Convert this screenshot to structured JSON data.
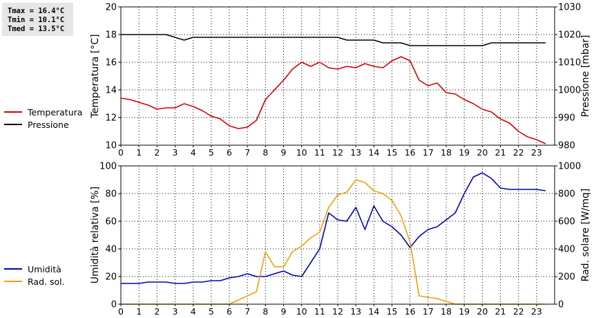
{
  "stats": {
    "tmax": "Tmax = 16.4°C",
    "tmin": "Tmin = 10.1°C",
    "tmed": "Tmed = 13.5°C"
  },
  "colors": {
    "temperature": "#d40000",
    "pressure": "#000000",
    "humidity": "#0000bb",
    "radiation": "#f0a000",
    "grid": "#000000"
  },
  "chart_data": [
    {
      "type": "line",
      "xlim": [
        0,
        24
      ],
      "xticks": [
        "0",
        "1",
        "2",
        "3",
        "4",
        "5",
        "6",
        "7",
        "8",
        "9",
        "10",
        "11",
        "12",
        "13",
        "14",
        "15",
        "16",
        "17",
        "18",
        "19",
        "20",
        "21",
        "22",
        "23"
      ],
      "ylabel": "Temperatura [°C]",
      "ylim": [
        10,
        20
      ],
      "yticks": [
        10,
        12,
        14,
        16,
        18,
        20
      ],
      "y2label": "Pressione [mbar]",
      "y2lim": [
        980,
        1030
      ],
      "y2ticks": [
        980,
        990,
        1000,
        1010,
        1020,
        1030
      ],
      "grid": true,
      "series": [
        {
          "name": "Temperatura",
          "axis": "left",
          "x": [
            0,
            0.5,
            1,
            1.5,
            2,
            2.5,
            3,
            3.5,
            4,
            4.5,
            5,
            5.5,
            6,
            6.5,
            7,
            7.5,
            8,
            8.5,
            9,
            9.5,
            10,
            10.5,
            11,
            11.5,
            12,
            12.5,
            13,
            13.5,
            14,
            14.5,
            15,
            15.5,
            16,
            16.5,
            17,
            17.5,
            18,
            18.5,
            19,
            19.5,
            20,
            20.5,
            21,
            21.5,
            22,
            22.5,
            23,
            23.5
          ],
          "values": [
            13.4,
            13.3,
            13.1,
            12.9,
            12.6,
            12.7,
            12.7,
            13.0,
            12.8,
            12.5,
            12.1,
            11.9,
            11.4,
            11.2,
            11.3,
            11.8,
            13.3,
            14.0,
            14.7,
            15.5,
            16.0,
            15.7,
            16.0,
            15.6,
            15.5,
            15.7,
            15.6,
            15.9,
            15.7,
            15.6,
            16.1,
            16.4,
            16.1,
            14.7,
            14.3,
            14.5,
            13.8,
            13.7,
            13.3,
            13.0,
            12.6,
            12.4,
            11.9,
            11.6,
            11.0,
            10.6,
            10.4,
            10.1
          ]
        },
        {
          "name": "Pressione",
          "axis": "right",
          "x": [
            0,
            0.5,
            1,
            1.5,
            2,
            2.5,
            3,
            3.5,
            4,
            4.5,
            5,
            5.5,
            6,
            6.5,
            7,
            7.5,
            8,
            8.5,
            9,
            9.5,
            10,
            10.5,
            11,
            11.5,
            12,
            12.5,
            13,
            13.5,
            14,
            14.5,
            15,
            15.5,
            16,
            16.5,
            17,
            17.5,
            18,
            18.5,
            19,
            19.5,
            20,
            20.5,
            21,
            21.5,
            22,
            22.5,
            23,
            23.5
          ],
          "values": [
            1020,
            1020,
            1020,
            1020,
            1020,
            1020,
            1019,
            1018,
            1019,
            1019,
            1019,
            1019,
            1019,
            1019,
            1019,
            1019,
            1019,
            1019,
            1019,
            1019,
            1019,
            1019,
            1019,
            1019,
            1019,
            1018,
            1018,
            1018,
            1018,
            1017,
            1017,
            1017,
            1016,
            1016,
            1016,
            1016,
            1016,
            1016,
            1016,
            1016,
            1016,
            1017,
            1017,
            1017,
            1017,
            1017,
            1017,
            1017
          ]
        }
      ]
    },
    {
      "type": "line",
      "xlim": [
        0,
        24
      ],
      "xticks": [
        "0",
        "1",
        "2",
        "3",
        "4",
        "5",
        "6",
        "7",
        "8",
        "9",
        "10",
        "11",
        "12",
        "13",
        "14",
        "15",
        "16",
        "17",
        "18",
        "19",
        "20",
        "21",
        "22",
        "23"
      ],
      "ylabel": "Umidità relativa [%]",
      "ylim": [
        0,
        100
      ],
      "yticks": [
        0,
        20,
        40,
        60,
        80,
        100
      ],
      "y2label": "Rad. solare [W/mq]",
      "y2lim": [
        0,
        1000
      ],
      "y2ticks": [
        0,
        200,
        400,
        600,
        800,
        1000
      ],
      "grid": true,
      "series": [
        {
          "name": "Umidità",
          "axis": "left",
          "x": [
            0,
            0.5,
            1,
            1.5,
            2,
            2.5,
            3,
            3.5,
            4,
            4.5,
            5,
            5.5,
            6,
            6.5,
            7,
            7.5,
            8,
            8.5,
            9,
            9.5,
            10,
            10.5,
            11,
            11.5,
            12,
            12.5,
            13,
            13.5,
            14,
            14.5,
            15,
            15.5,
            16,
            16.5,
            17,
            17.5,
            18,
            18.5,
            19,
            19.5,
            20,
            20.5,
            21,
            21.5,
            22,
            22.5,
            23,
            23.5
          ],
          "values": [
            15,
            15,
            15,
            16,
            16,
            16,
            15,
            15,
            16,
            16,
            17,
            17,
            19,
            20,
            22,
            20,
            20,
            22,
            24,
            21,
            20,
            30,
            40,
            66,
            61,
            60,
            70,
            54,
            71,
            60,
            56,
            50,
            41,
            49,
            54,
            56,
            61,
            66,
            80,
            92,
            95,
            91,
            84,
            83,
            83,
            83,
            83,
            82
          ]
        },
        {
          "name": "Rad. sol.",
          "axis": "right",
          "x": [
            0,
            0.5,
            1,
            1.5,
            2,
            2.5,
            3,
            3.5,
            4,
            4.5,
            5,
            5.5,
            6,
            6.5,
            7,
            7.5,
            8,
            8.5,
            9,
            9.5,
            10,
            10.5,
            11,
            11.5,
            12,
            12.5,
            13,
            13.5,
            14,
            14.5,
            15,
            15.5,
            16,
            16.5,
            17,
            17.5,
            18,
            18.5,
            19,
            19.5,
            20,
            20.5,
            21,
            21.5,
            22,
            22.5,
            23,
            23.5
          ],
          "values": [
            0,
            0,
            0,
            0,
            0,
            0,
            0,
            0,
            0,
            0,
            0,
            0,
            0,
            30,
            60,
            90,
            380,
            270,
            270,
            380,
            420,
            480,
            520,
            700,
            790,
            810,
            900,
            880,
            820,
            800,
            750,
            640,
            450,
            60,
            50,
            40,
            20,
            0,
            0,
            0,
            0,
            0,
            0,
            0,
            0,
            0,
            0,
            0
          ]
        }
      ]
    }
  ]
}
